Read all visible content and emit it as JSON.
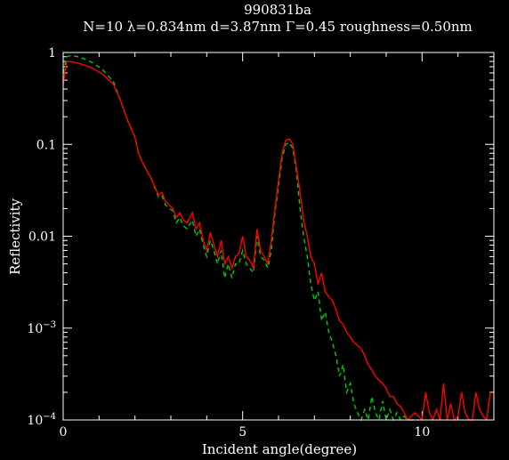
{
  "chart_data": {
    "type": "line",
    "title": "990831ba",
    "subtitle": "N=10 λ=0.834nm  d=3.87nm Γ=0.45 roughness=0.50nm",
    "xlabel": "Incident angle(degree)",
    "ylabel": "Reflectivity",
    "xlim": [
      0,
      12
    ],
    "ylim": [
      0.0001,
      1
    ],
    "yscale": "log",
    "grid": false,
    "x_ticks": [
      {
        "value": 0,
        "label": "0"
      },
      {
        "value": 5,
        "label": "5"
      },
      {
        "value": 10,
        "label": "10"
      }
    ],
    "y_ticks": [
      {
        "value": 1,
        "label": "1"
      },
      {
        "value": 0.1,
        "label": "0.1"
      },
      {
        "value": 0.01,
        "label": "0.01"
      },
      {
        "value": 0.001,
        "label": "10",
        "sup": "−3"
      },
      {
        "value": 0.0001,
        "label": "10",
        "sup": "−4"
      }
    ],
    "series": [
      {
        "color": "#ff0000",
        "style": "solid",
        "x": [
          0,
          0.1,
          0.25,
          0.5,
          0.8,
          1.1,
          1.4,
          1.6,
          1.8,
          2.0,
          2.1,
          2.2,
          2.35,
          2.45,
          2.55,
          2.65,
          2.75,
          2.85,
          2.95,
          3.05,
          3.15,
          3.25,
          3.35,
          3.45,
          3.6,
          3.7,
          3.8,
          3.9,
          4.0,
          4.1,
          4.2,
          4.3,
          4.4,
          4.5,
          4.6,
          4.7,
          4.8,
          4.9,
          5.0,
          5.1,
          5.2,
          5.3,
          5.4,
          5.5,
          5.6,
          5.7,
          5.8,
          5.9,
          6.0,
          6.1,
          6.2,
          6.3,
          6.4,
          6.5,
          6.6,
          6.7,
          6.8,
          6.9,
          7.0,
          7.1,
          7.2,
          7.3,
          7.4,
          7.5,
          7.6,
          7.7,
          7.8,
          7.9,
          8.0,
          8.1,
          8.2,
          8.3,
          8.4,
          8.5,
          8.6,
          8.7,
          8.8,
          8.9,
          9.0,
          9.1,
          9.2,
          9.3,
          9.4,
          9.5,
          9.6,
          9.7,
          9.8,
          9.9,
          10.0,
          10.1,
          10.2,
          10.3,
          10.4,
          10.5,
          10.6,
          10.7,
          10.8,
          10.9,
          11.0,
          11.1,
          11.2,
          11.3,
          11.4,
          11.5,
          11.6,
          11.7,
          11.8,
          11.9
        ],
        "y": [
          0.45,
          0.8,
          0.79,
          0.75,
          0.68,
          0.58,
          0.45,
          0.3,
          0.18,
          0.12,
          0.08,
          0.065,
          0.05,
          0.043,
          0.035,
          0.028,
          0.03,
          0.024,
          0.022,
          0.02,
          0.016,
          0.018,
          0.015,
          0.014,
          0.018,
          0.012,
          0.014,
          0.009,
          0.007,
          0.011,
          0.008,
          0.006,
          0.009,
          0.005,
          0.006,
          0.0045,
          0.006,
          0.0065,
          0.01,
          0.006,
          0.0055,
          0.0045,
          0.012,
          0.007,
          0.006,
          0.005,
          0.009,
          0.02,
          0.04,
          0.08,
          0.11,
          0.115,
          0.1,
          0.055,
          0.03,
          0.015,
          0.01,
          0.006,
          0.005,
          0.003,
          0.004,
          0.0025,
          0.0022,
          0.002,
          0.0016,
          0.0012,
          0.0011,
          0.0009,
          0.0008,
          0.0007,
          0.00065,
          0.0006,
          0.0005,
          0.0004,
          0.00035,
          0.0003,
          0.00027,
          0.00025,
          0.00022,
          0.00018,
          0.00018,
          0.00015,
          0.00014,
          0.00012,
          0.0001,
          0.00011,
          0.00012,
          0.00011,
          0.0001,
          0.0002,
          0.00012,
          0.0001,
          0.00013,
          0.0001,
          0.00025,
          0.0001,
          0.00015,
          0.0001,
          0.00011,
          0.0002,
          0.00012,
          0.0001,
          0.0001,
          0.0002,
          0.00013,
          0.00011,
          0.0001,
          0.0002
        ]
      },
      {
        "color": "#00cc00",
        "style": "dashed",
        "x": [
          0,
          0.1,
          0.25,
          0.5,
          0.8,
          1.1,
          1.4,
          1.6,
          1.8,
          2.0,
          2.1,
          2.2,
          2.35,
          2.45,
          2.55,
          2.65,
          2.75,
          2.85,
          2.95,
          3.05,
          3.15,
          3.25,
          3.35,
          3.45,
          3.6,
          3.7,
          3.8,
          3.9,
          4.0,
          4.1,
          4.2,
          4.3,
          4.4,
          4.5,
          4.6,
          4.7,
          4.8,
          4.9,
          5.0,
          5.1,
          5.2,
          5.3,
          5.4,
          5.5,
          5.6,
          5.7,
          5.8,
          5.9,
          6.0,
          6.1,
          6.2,
          6.3,
          6.4,
          6.5,
          6.6,
          6.7,
          6.8,
          6.9,
          7.0,
          7.1,
          7.2,
          7.3,
          7.4,
          7.5,
          7.6,
          7.7,
          7.8,
          7.9,
          8.0,
          8.1,
          8.2,
          8.3,
          8.4,
          8.5,
          8.6,
          8.7,
          8.8,
          8.9,
          9.0,
          9.1,
          9.2,
          9.3,
          9.4,
          9.5,
          9.6,
          9.7,
          9.8,
          9.9
        ],
        "y": [
          0.6,
          0.9,
          0.93,
          0.88,
          0.78,
          0.65,
          0.48,
          0.3,
          0.18,
          0.12,
          0.08,
          0.065,
          0.05,
          0.043,
          0.034,
          0.027,
          0.028,
          0.022,
          0.02,
          0.019,
          0.014,
          0.016,
          0.013,
          0.012,
          0.015,
          0.01,
          0.012,
          0.008,
          0.006,
          0.009,
          0.007,
          0.005,
          0.007,
          0.0035,
          0.005,
          0.0035,
          0.005,
          0.005,
          0.007,
          0.005,
          0.0045,
          0.004,
          0.01,
          0.006,
          0.0055,
          0.0045,
          0.007,
          0.018,
          0.035,
          0.07,
          0.1,
          0.105,
          0.09,
          0.05,
          0.02,
          0.01,
          0.006,
          0.003,
          0.002,
          0.0025,
          0.0012,
          0.0015,
          0.0009,
          0.0007,
          0.0005,
          0.0003,
          0.0004,
          0.0002,
          0.00025,
          0.00015,
          0.00012,
          0.0001,
          0.00013,
          0.0001,
          0.00018,
          0.00012,
          0.0001,
          0.00016,
          0.0001,
          0.00013,
          0.0001,
          0.00012,
          0.0001,
          0.00011,
          0.0001,
          0.0001,
          0.0001,
          0.0001
        ]
      }
    ]
  }
}
